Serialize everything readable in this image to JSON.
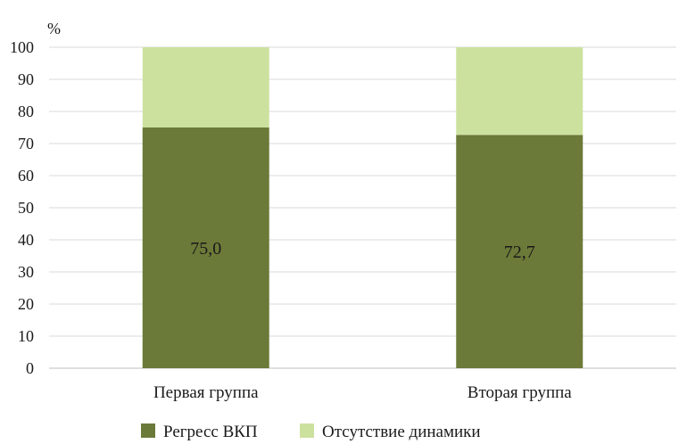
{
  "chart_data": {
    "type": "bar",
    "stacked": true,
    "unit_label": "%",
    "categories": [
      "Первая группа",
      "Вторая группа"
    ],
    "series": [
      {
        "name": "Регресс ВКП",
        "values": [
          75.0,
          72.7
        ],
        "labels": [
          "75,0",
          "72,7"
        ],
        "color": "#6b7a38"
      },
      {
        "name": "Отсутствие динамики",
        "values": [
          25.0,
          27.3
        ],
        "color": "#cde19f"
      }
    ],
    "ylim": [
      0,
      100
    ],
    "yticks": [
      "0",
      "10",
      "20",
      "30",
      "40",
      "50",
      "60",
      "70",
      "80",
      "90",
      "100"
    ],
    "grid": true,
    "legend_position": "bottom"
  }
}
